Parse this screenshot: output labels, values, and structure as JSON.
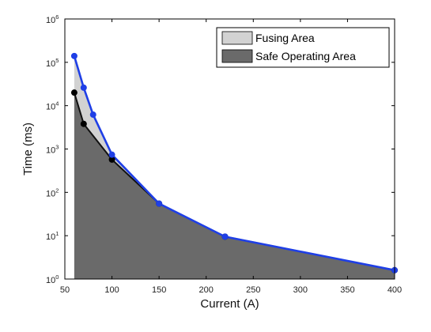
{
  "chart_data": {
    "type": "area",
    "xlabel": "Current (A)",
    "ylabel": "Time (ms)",
    "xlim": [
      50,
      400
    ],
    "ylim": [
      1,
      1000000
    ],
    "y_scale": "log",
    "grid": false,
    "legend_position": "top-right",
    "x_ticks": [
      {
        "value": 50,
        "label": "50"
      },
      {
        "value": 100,
        "label": "100"
      },
      {
        "value": 150,
        "label": "150"
      },
      {
        "value": 200,
        "label": "200"
      },
      {
        "value": 250,
        "label": "250"
      },
      {
        "value": 300,
        "label": "300"
      },
      {
        "value": 350,
        "label": "350"
      },
      {
        "value": 400,
        "label": "400"
      }
    ],
    "y_ticks": [
      {
        "value": 1,
        "base": "10",
        "exp": "0"
      },
      {
        "value": 10,
        "base": "10",
        "exp": "1"
      },
      {
        "value": 100,
        "base": "10",
        "exp": "2"
      },
      {
        "value": 1000,
        "base": "10",
        "exp": "3"
      },
      {
        "value": 10000,
        "base": "10",
        "exp": "4"
      },
      {
        "value": 100000,
        "base": "10",
        "exp": "5"
      },
      {
        "value": 1000000,
        "base": "10",
        "exp": "6"
      }
    ],
    "series": [
      {
        "name": "Fusing Area",
        "fill": "#d2d2d2",
        "line_color": "#1f3fe6",
        "marker_color": "#1f3fe6",
        "points": [
          {
            "x": 60,
            "y": 140000
          },
          {
            "x": 70,
            "y": 26000
          },
          {
            "x": 80,
            "y": 6200
          },
          {
            "x": 100,
            "y": 740
          },
          {
            "x": 150,
            "y": 55
          },
          {
            "x": 220,
            "y": 9.5
          },
          {
            "x": 400,
            "y": 1.6
          }
        ]
      },
      {
        "name": "Safe Operating Area",
        "fill": "#6a6a6a",
        "line_color": "#111111",
        "marker_color": "#000000",
        "points": [
          {
            "x": 60,
            "y": 20000
          },
          {
            "x": 70,
            "y": 3800
          },
          {
            "x": 100,
            "y": 570
          },
          {
            "x": 150,
            "y": 55
          },
          {
            "x": 220,
            "y": 9.5
          },
          {
            "x": 400,
            "y": 1.6
          }
        ]
      }
    ]
  }
}
